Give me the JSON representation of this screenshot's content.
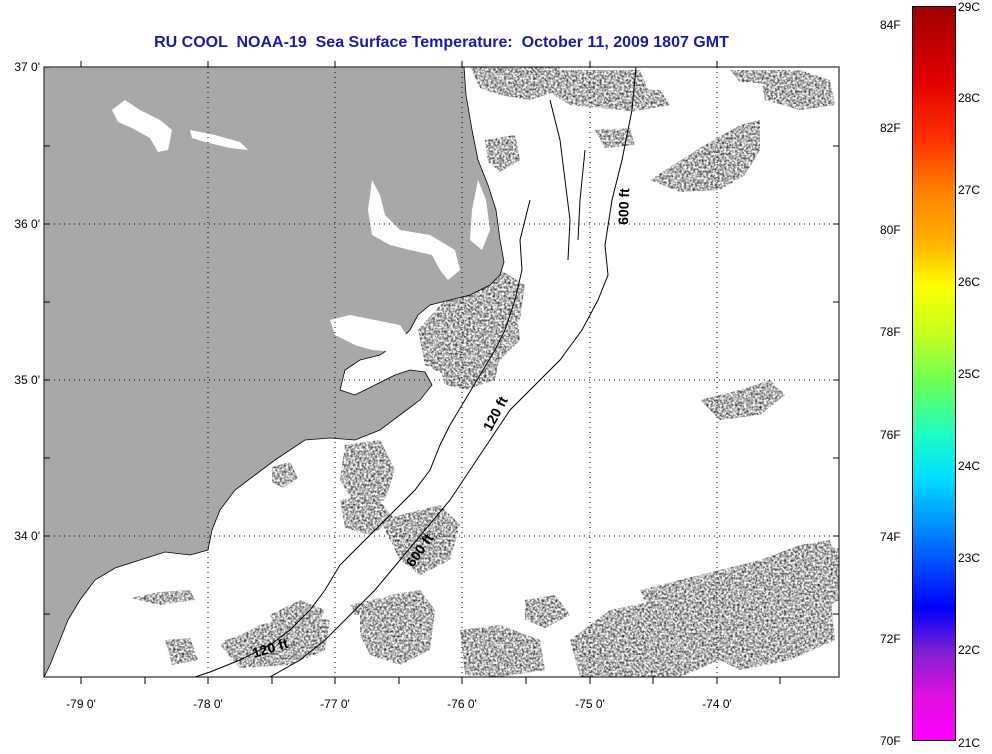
{
  "title": "RU COOL  NOAA-19  Sea Surface Temperature:  October 11, 2009 1807 GMT",
  "lat_ticks": [
    "37 0'",
    "36 0'",
    "35 0'",
    "34 0'"
  ],
  "lon_ticks": [
    "-79 0'",
    "-78 0'",
    "-77 0'",
    "-76 0'",
    "-75 0'",
    "-74 0'"
  ],
  "depth_labels": [
    "600 ft",
    "120 ft",
    "600 ft",
    "120 ft"
  ],
  "colorbar": {
    "fahrenheit": [
      "84F",
      "82F",
      "80F",
      "78F",
      "76F",
      "74F",
      "72F",
      "70F"
    ],
    "celsius": [
      "29C",
      "28C",
      "27C",
      "26C",
      "25C",
      "24C",
      "23C",
      "22C",
      "21C"
    ]
  },
  "colors": {
    "land": "#a8a8a8",
    "title": "#1a1aa8"
  }
}
